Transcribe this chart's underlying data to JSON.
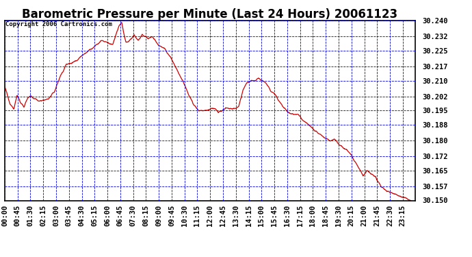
{
  "title": "Barometric Pressure per Minute (Last 24 Hours) 20061123",
  "copyright": "Copyright 2006 Cartronics.com",
  "background_color": "#ffffff",
  "plot_bg_color": "#ffffff",
  "line_color": "#cc0000",
  "grid_color": "#0000dd",
  "ylim": [
    30.15,
    30.24
  ],
  "yticks": [
    30.15,
    30.157,
    30.165,
    30.172,
    30.18,
    30.188,
    30.195,
    30.202,
    30.21,
    30.217,
    30.225,
    30.232,
    30.24
  ],
  "xtick_labels": [
    "00:00",
    "00:45",
    "01:30",
    "02:15",
    "03:00",
    "03:45",
    "04:30",
    "05:15",
    "06:00",
    "06:45",
    "07:30",
    "08:15",
    "09:00",
    "09:45",
    "10:30",
    "11:15",
    "12:00",
    "12:45",
    "13:30",
    "14:15",
    "15:00",
    "15:45",
    "16:30",
    "17:15",
    "18:00",
    "18:45",
    "19:30",
    "20:15",
    "21:00",
    "21:45",
    "22:30",
    "23:15"
  ],
  "title_fontsize": 12,
  "tick_fontsize": 7.5,
  "copyright_fontsize": 6.5,
  "figsize": [
    6.9,
    3.75
  ],
  "dpi": 100,
  "keypoints": [
    [
      0.0,
      30.207
    ],
    [
      0.013,
      30.198
    ],
    [
      0.022,
      30.196
    ],
    [
      0.03,
      30.203
    ],
    [
      0.038,
      30.199
    ],
    [
      0.047,
      30.197
    ],
    [
      0.055,
      30.201
    ],
    [
      0.063,
      30.202
    ],
    [
      0.072,
      30.201
    ],
    [
      0.083,
      30.2
    ],
    [
      0.095,
      30.2
    ],
    [
      0.107,
      30.201
    ],
    [
      0.12,
      30.204
    ],
    [
      0.135,
      30.212
    ],
    [
      0.15,
      30.218
    ],
    [
      0.163,
      30.219
    ],
    [
      0.175,
      30.22
    ],
    [
      0.19,
      30.223
    ],
    [
      0.205,
      30.225
    ],
    [
      0.22,
      30.227
    ],
    [
      0.235,
      30.23
    ],
    [
      0.25,
      30.229
    ],
    [
      0.263,
      30.228
    ],
    [
      0.278,
      30.237
    ],
    [
      0.285,
      30.239
    ],
    [
      0.295,
      30.229
    ],
    [
      0.305,
      30.23
    ],
    [
      0.315,
      30.233
    ],
    [
      0.325,
      30.23
    ],
    [
      0.335,
      30.233
    ],
    [
      0.348,
      30.231
    ],
    [
      0.36,
      30.232
    ],
    [
      0.373,
      30.228
    ],
    [
      0.388,
      30.226
    ],
    [
      0.403,
      30.222
    ],
    [
      0.418,
      30.216
    ],
    [
      0.433,
      30.21
    ],
    [
      0.448,
      30.203
    ],
    [
      0.46,
      30.198
    ],
    [
      0.472,
      30.195
    ],
    [
      0.483,
      30.195
    ],
    [
      0.493,
      30.195
    ],
    [
      0.503,
      30.196
    ],
    [
      0.513,
      30.196
    ],
    [
      0.52,
      30.194
    ],
    [
      0.53,
      30.195
    ],
    [
      0.538,
      30.196
    ],
    [
      0.547,
      30.196
    ],
    [
      0.555,
      30.196
    ],
    [
      0.563,
      30.196
    ],
    [
      0.57,
      30.197
    ],
    [
      0.58,
      30.205
    ],
    [
      0.59,
      30.209
    ],
    [
      0.6,
      30.21
    ],
    [
      0.61,
      30.21
    ],
    [
      0.618,
      30.211
    ],
    [
      0.628,
      30.21
    ],
    [
      0.638,
      30.208
    ],
    [
      0.648,
      30.205
    ],
    [
      0.658,
      30.203
    ],
    [
      0.668,
      30.2
    ],
    [
      0.678,
      30.197
    ],
    [
      0.69,
      30.194
    ],
    [
      0.703,
      30.193
    ],
    [
      0.715,
      30.193
    ],
    [
      0.728,
      30.19
    ],
    [
      0.74,
      30.188
    ],
    [
      0.755,
      30.185
    ],
    [
      0.768,
      30.183
    ],
    [
      0.78,
      30.181
    ],
    [
      0.793,
      30.18
    ],
    [
      0.803,
      30.181
    ],
    [
      0.815,
      30.178
    ],
    [
      0.828,
      30.176
    ],
    [
      0.84,
      30.174
    ],
    [
      0.852,
      30.17
    ],
    [
      0.863,
      30.166
    ],
    [
      0.873,
      30.162
    ],
    [
      0.882,
      30.165
    ],
    [
      0.893,
      30.163
    ],
    [
      0.905,
      30.161
    ],
    [
      0.917,
      30.157
    ],
    [
      0.928,
      30.155
    ],
    [
      0.94,
      30.154
    ],
    [
      0.953,
      30.153
    ],
    [
      0.965,
      30.152
    ],
    [
      0.978,
      30.151
    ],
    [
      0.988,
      30.15
    ],
    [
      1.0,
      30.148
    ]
  ]
}
